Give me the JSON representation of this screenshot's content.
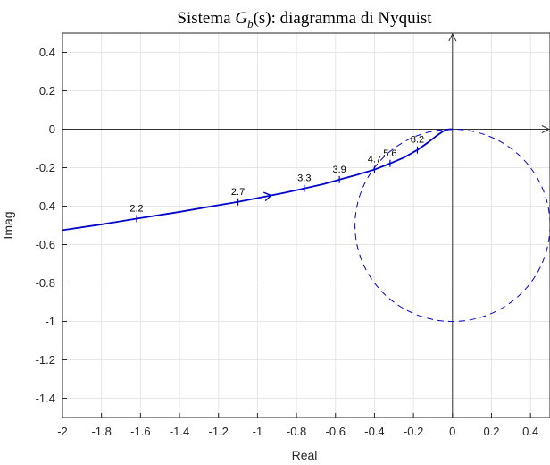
{
  "chart_data": {
    "type": "line",
    "title": {
      "prefix": "Sistema ",
      "symbol": "G",
      "subscript": "b",
      "argument": "(s)",
      "suffix": ": diagramma di Nyquist"
    },
    "xlabel": "Real",
    "ylabel": "Imag",
    "xlim": [
      -2,
      0.5
    ],
    "ylim": [
      -1.5,
      0.5
    ],
    "x_ticks": [
      -2,
      -1.8,
      -1.6,
      -1.4,
      -1.2,
      -1,
      -0.8,
      -0.6,
      -0.4,
      -0.2,
      0,
      0.2,
      0.4
    ],
    "x_tick_labels": [
      "-2",
      "-1.8",
      "-1.6",
      "-1.4",
      "-1.2",
      "-1",
      "-0.8",
      "-0.6",
      "-0.4",
      "-0.2",
      "0",
      "0.2",
      "0.4"
    ],
    "y_ticks": [
      0.4,
      0.2,
      0,
      -0.2,
      -0.4,
      -0.6,
      -0.8,
      -1,
      -1.2,
      -1.4
    ],
    "y_tick_labels": [
      "0.4",
      "0.2",
      "0",
      "-0.2",
      "-0.4",
      "-0.6",
      "-0.8",
      "-1",
      "-1.2",
      "-1.4"
    ],
    "grid": true,
    "series": [
      {
        "style": "solid",
        "color": "#0000cc",
        "x": [
          -2.0,
          -1.8,
          -1.62,
          -1.4,
          -1.2,
          -1.1,
          -1.0,
          -0.93,
          -0.86,
          -0.76,
          -0.66,
          -0.58,
          -0.5,
          -0.4,
          -0.32,
          -0.25,
          -0.18,
          -0.12,
          -0.08,
          -0.05,
          -0.03,
          -0.01,
          0.0
        ],
        "y": [
          -0.525,
          -0.495,
          -0.465,
          -0.43,
          -0.395,
          -0.378,
          -0.358,
          -0.344,
          -0.33,
          -0.308,
          -0.285,
          -0.262,
          -0.24,
          -0.21,
          -0.178,
          -0.148,
          -0.108,
          -0.065,
          -0.033,
          -0.012,
          -0.002,
          0.0,
          0.0
        ]
      },
      {
        "style": "dashed",
        "color": "#0000cc",
        "shape": "circle",
        "center": [
          0,
          -0.5
        ],
        "radius": 0.5
      }
    ],
    "arrow_at": [
      -0.93,
      -0.344
    ],
    "frequency_labels": [
      {
        "text": "2.2",
        "x": -1.62,
        "y": -0.465
      },
      {
        "text": "2.7",
        "x": -1.1,
        "y": -0.378
      },
      {
        "text": "3.3",
        "x": -0.76,
        "y": -0.308
      },
      {
        "text": "3.9",
        "x": -0.58,
        "y": -0.262
      },
      {
        "text": "4.7",
        "x": -0.4,
        "y": -0.21
      },
      {
        "text": "5.6",
        "x": -0.32,
        "y": -0.178
      },
      {
        "text": "8.2",
        "x": -0.18,
        "y": -0.108
      }
    ]
  }
}
